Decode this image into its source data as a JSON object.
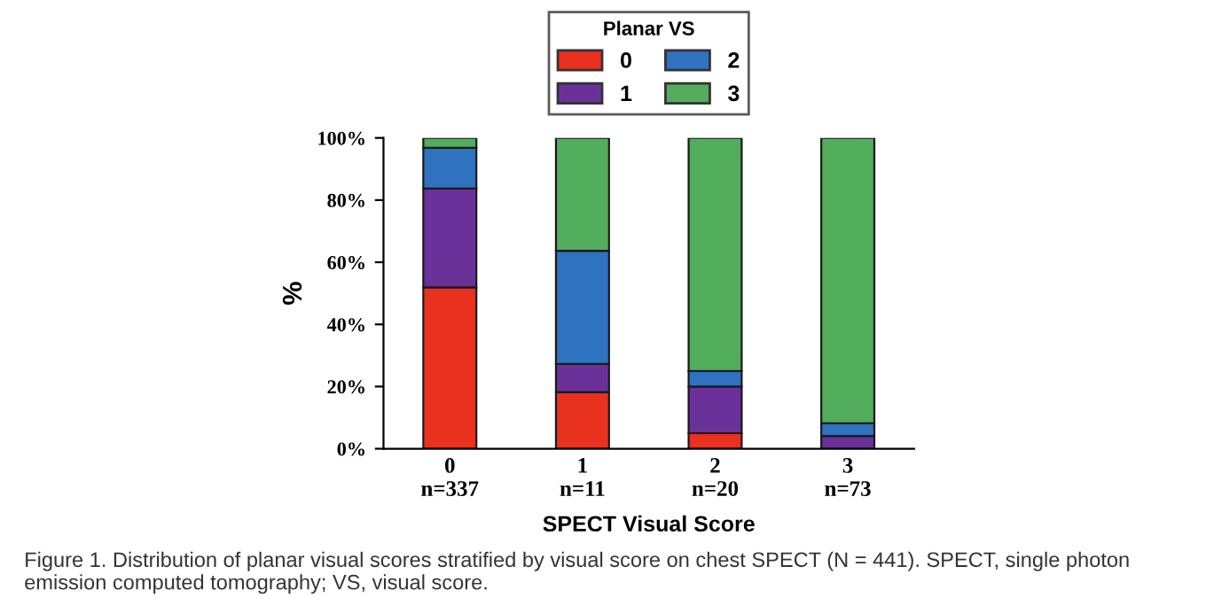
{
  "chart_data": {
    "type": "bar",
    "stacked": true,
    "xlabel": "SPECT Visual Score",
    "ylabel": "%",
    "legend_title": "Planar VS",
    "legend": "top",
    "categories": [
      "0\nn=337",
      "1\nn=11",
      "2\nn=20",
      "3\nn=73"
    ],
    "series": [
      {
        "name": "0",
        "color": "#e8311f",
        "values": [
          51.9,
          18.2,
          5,
          0
        ]
      },
      {
        "name": "1",
        "color": "#6a319a",
        "values": [
          31.8,
          9.1,
          15,
          4.1
        ]
      },
      {
        "name": "2",
        "color": "#2f72c0",
        "values": [
          13.1,
          36.4,
          5,
          4.1
        ]
      },
      {
        "name": "3",
        "color": "#52ad5c",
        "values": [
          3.2,
          36.3,
          75,
          91.8
        ]
      }
    ],
    "ylim": [
      0,
      100
    ],
    "yticks": [
      {
        "value": 0,
        "label": "0%"
      },
      {
        "value": 20,
        "label": "20%"
      },
      {
        "value": 40,
        "label": "40%"
      },
      {
        "value": 60,
        "label": "60%"
      },
      {
        "value": 80,
        "label": "80%"
      },
      {
        "value": 100,
        "label": "100%"
      }
    ],
    "grid": false,
    "annotations": [
      "Figure 1. Distribution of planar visual scores stratified by visual score on chest SPECT (N = 441). SPECT, single photon emission computed tomography; VS, visual score."
    ]
  }
}
